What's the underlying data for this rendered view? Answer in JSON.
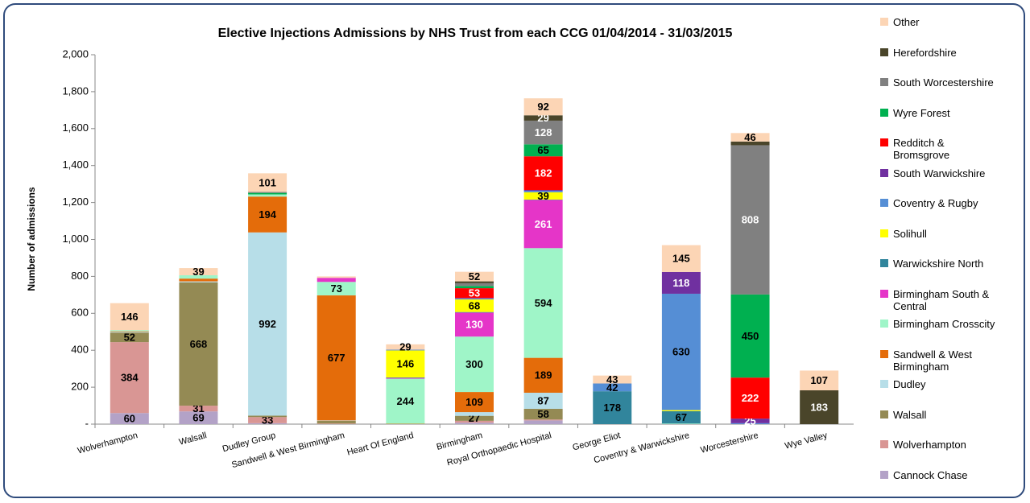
{
  "chart_data": {
    "type": "stacked_bar",
    "title": "Elective Injections Admissions by NHS Trust from each CCG  01/04/2014 - 31/03/2015",
    "y_label": "Number of admissions",
    "categories": [
      "Wolverhampton",
      "Walsall",
      "Dudley Group",
      "Sandwell & West Birmingham",
      "Heart Of England",
      "Birmingham",
      "Royal Orthopaedic Hospital",
      "George Eliot",
      "Coventry & Warwickshire",
      "Worcestershire",
      "Wye Valley"
    ],
    "ylim": [
      0,
      2000
    ],
    "yticks": [
      {
        "value": 0,
        "label": "-"
      },
      200,
      400,
      600,
      800,
      {
        "value": 1000,
        "label": "1,000"
      },
      {
        "value": 1200,
        "label": "1,200"
      },
      {
        "value": 1400,
        "label": "1,400"
      },
      {
        "value": 1600,
        "label": "1,600"
      },
      {
        "value": 1800,
        "label": "1,800"
      },
      {
        "value": 2000,
        "label": "2,000"
      }
    ],
    "series": [
      {
        "name": "Cannock Chase",
        "color": "#b3a2c7",
        "values": [
          60,
          69,
          5,
          0,
          0,
          8,
          20,
          0,
          0,
          0,
          0
        ]
      },
      {
        "name": "Wolverhampton",
        "color": "#d99694",
        "values": [
          384,
          31,
          33,
          3,
          0,
          10,
          5,
          0,
          0,
          0,
          0
        ]
      },
      {
        "name": "Walsall",
        "color": "#948a54",
        "values": [
          52,
          668,
          8,
          15,
          0,
          27,
          58,
          0,
          0,
          0,
          0
        ]
      },
      {
        "name": "Dudley",
        "color": "#b7dee8",
        "values": [
          4,
          5,
          992,
          2,
          0,
          20,
          87,
          0,
          0,
          0,
          0
        ]
      },
      {
        "name": "Sandwell & West Birmingham",
        "color": "#e46c0a",
        "values": [
          3,
          15,
          194,
          677,
          2,
          109,
          189,
          0,
          0,
          0,
          0
        ]
      },
      {
        "name": "Birmingham Crosscity",
        "color": "#9ff5c8",
        "values": [
          6,
          18,
          12,
          73,
          244,
          300,
          594,
          0,
          3,
          0,
          0
        ]
      },
      {
        "name": "Birmingham South & Central",
        "color": "#e535c8",
        "values": [
          0,
          0,
          0,
          22,
          4,
          130,
          261,
          0,
          0,
          0,
          0
        ]
      },
      {
        "name": "Warwickshire North",
        "color": "#31859c",
        "values": [
          0,
          0,
          0,
          0,
          3,
          3,
          2,
          178,
          67,
          0,
          0
        ]
      },
      {
        "name": "Solihull",
        "color": "#ffff00",
        "values": [
          0,
          0,
          0,
          0,
          146,
          68,
          39,
          0,
          6,
          0,
          0
        ]
      },
      {
        "name": "Coventry & Rugby",
        "color": "#558ed5",
        "values": [
          0,
          0,
          0,
          0,
          4,
          5,
          8,
          42,
          630,
          5,
          0
        ]
      },
      {
        "name": "South Warwickshire",
        "color": "#7030a0",
        "values": [
          0,
          0,
          0,
          0,
          0,
          3,
          5,
          0,
          118,
          25,
          0
        ]
      },
      {
        "name": "Redditch & Bromsgrove",
        "color": "#ff0000",
        "values": [
          0,
          0,
          0,
          0,
          0,
          53,
          182,
          0,
          0,
          222,
          0
        ]
      },
      {
        "name": "Wyre Forest",
        "color": "#00b050",
        "values": [
          0,
          0,
          8,
          0,
          0,
          12,
          65,
          0,
          0,
          450,
          0
        ]
      },
      {
        "name": "South Worcestershire",
        "color": "#808080",
        "values": [
          0,
          0,
          5,
          0,
          0,
          15,
          128,
          0,
          0,
          808,
          0
        ]
      },
      {
        "name": "Herefordshire",
        "color": "#4a452a",
        "values": [
          0,
          0,
          0,
          0,
          0,
          10,
          29,
          0,
          0,
          20,
          183
        ]
      },
      {
        "name": "Other",
        "color": "#fcd5b5",
        "values": [
          146,
          39,
          101,
          8,
          29,
          52,
          92,
          43,
          145,
          46,
          107
        ]
      }
    ]
  }
}
